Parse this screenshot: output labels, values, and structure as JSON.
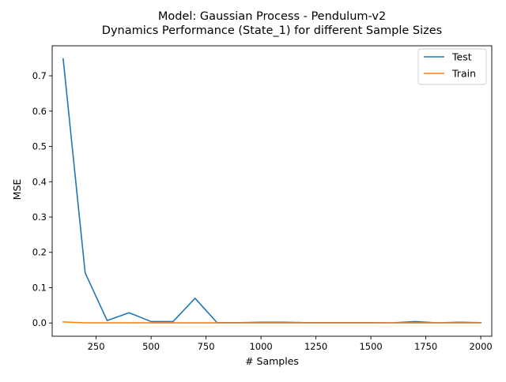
{
  "chart_data": {
    "type": "line",
    "title_line1": "Model: Gaussian Process - Pendulum-v2",
    "title_line2": "Dynamics Performance (State_1) for different Sample Sizes",
    "xlabel": "# Samples",
    "ylabel": "MSE",
    "xlim": [
      50,
      2050
    ],
    "ylim": [
      -0.0375,
      0.785
    ],
    "x_ticks": [
      250,
      500,
      750,
      1000,
      1250,
      1500,
      1750,
      2000
    ],
    "y_ticks": [
      0.0,
      0.1,
      0.2,
      0.3,
      0.4,
      0.5,
      0.6,
      0.7
    ],
    "y_tick_labels": [
      "0.0",
      "0.1",
      "0.2",
      "0.3",
      "0.4",
      "0.5",
      "0.6",
      "0.7"
    ],
    "grid": false,
    "legend_position": "top-right",
    "x": [
      100,
      200,
      300,
      400,
      500,
      600,
      700,
      800,
      900,
      1000,
      1100,
      1200,
      1300,
      1400,
      1500,
      1600,
      1700,
      1800,
      1900,
      2000
    ],
    "series": [
      {
        "name": "Test",
        "color": "#1f77b4",
        "values": [
          0.748,
          0.142,
          0.007,
          0.029,
          0.004,
          0.004,
          0.07,
          0.001,
          0.001,
          0.002,
          0.002,
          0.001,
          0.001,
          0.001,
          0.001,
          0.0005,
          0.004,
          0.0005,
          0.002,
          0.001
        ]
      },
      {
        "name": "Train",
        "color": "#ff7f0e",
        "values": [
          0.003,
          0.0005,
          0.0005,
          0.0005,
          0.0003,
          0.0003,
          0.0003,
          0.0003,
          0.0003,
          0.0003,
          0.0003,
          0.0003,
          0.0003,
          0.0003,
          0.0003,
          0.0003,
          0.0003,
          0.0003,
          0.0003,
          0.0003
        ]
      }
    ]
  }
}
